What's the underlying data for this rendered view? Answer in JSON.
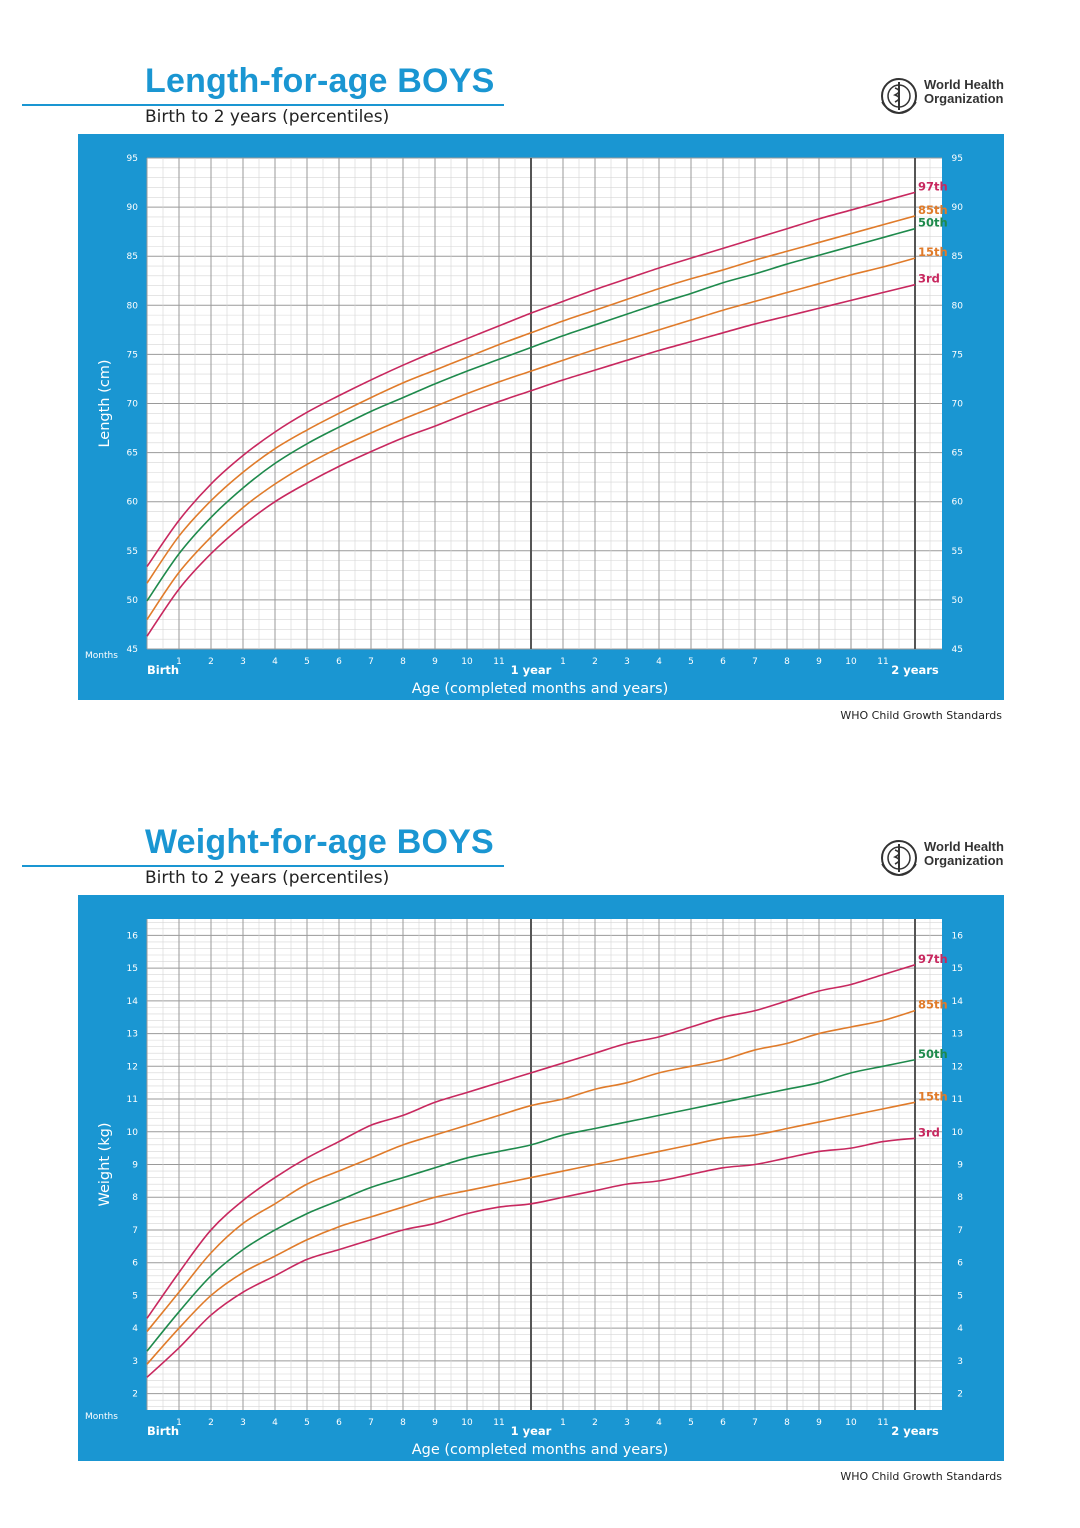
{
  "footer_text": "WHO Child Growth Standards",
  "org": {
    "line1": "World Health",
    "line2": "Organization",
    "emblem": "who-emblem-icon"
  },
  "colors": {
    "frame": "#1a96d2",
    "p97": "#c8285f",
    "p85": "#e07b2a",
    "p50": "#1e8a4c",
    "p15": "#e07b2a",
    "p3": "#c8285f"
  },
  "charts": [
    {
      "header": {
        "title": "Length-for-age BOYS",
        "subtitle": "Birth to 2 years (percentiles)"
      },
      "chart_data": {
        "type": "line",
        "title": "Length-for-age BOYS",
        "subtitle": "Birth to 2 years (percentiles)",
        "xlabel": "Age (completed months and years)",
        "ylabel": "Length (cm)",
        "x_unit_label": "Months",
        "x_range": [
          0,
          24
        ],
        "ylim": [
          45,
          95
        ],
        "y_major": 5,
        "y_minor": 1,
        "x_ticks": [
          "Birth",
          "1",
          "2",
          "3",
          "4",
          "5",
          "6",
          "7",
          "8",
          "9",
          "10",
          "11",
          "1 year",
          "1",
          "2",
          "3",
          "4",
          "5",
          "6",
          "7",
          "8",
          "9",
          "10",
          "11",
          "2 years"
        ],
        "y_ticks": [
          "45",
          "50",
          "55",
          "60",
          "65",
          "70",
          "75",
          "80",
          "85",
          "90",
          "95"
        ],
        "x": [
          0,
          1,
          2,
          3,
          4,
          5,
          6,
          7,
          8,
          9,
          10,
          11,
          12,
          13,
          14,
          15,
          16,
          17,
          18,
          19,
          20,
          21,
          22,
          23,
          24
        ],
        "series": [
          {
            "name": "97th",
            "color_key": "p97",
            "values": [
              53.4,
              58.1,
              61.8,
              64.7,
              67.1,
              69.1,
              70.8,
              72.4,
              73.9,
              75.3,
              76.6,
              77.9,
              79.2,
              80.4,
              81.6,
              82.7,
              83.8,
              84.8,
              85.8,
              86.8,
              87.8,
              88.8,
              89.7,
              90.6,
              91.5
            ]
          },
          {
            "name": "85th",
            "color_key": "p85",
            "values": [
              51.7,
              56.5,
              60.1,
              63.0,
              65.4,
              67.3,
              69.0,
              70.6,
              72.1,
              73.4,
              74.7,
              76.0,
              77.2,
              78.4,
              79.5,
              80.6,
              81.7,
              82.7,
              83.6,
              84.6,
              85.5,
              86.4,
              87.3,
              88.2,
              89.1
            ]
          },
          {
            "name": "50th",
            "color_key": "p50",
            "values": [
              49.9,
              54.7,
              58.4,
              61.4,
              63.9,
              65.9,
              67.6,
              69.2,
              70.6,
              72.0,
              73.3,
              74.5,
              75.7,
              76.9,
              78.0,
              79.1,
              80.2,
              81.2,
              82.3,
              83.2,
              84.2,
              85.1,
              86.0,
              86.9,
              87.8
            ]
          },
          {
            "name": "15th",
            "color_key": "p15",
            "values": [
              48.0,
              52.8,
              56.4,
              59.4,
              61.8,
              63.8,
              65.5,
              67.0,
              68.4,
              69.7,
              71.0,
              72.2,
              73.3,
              74.4,
              75.5,
              76.5,
              77.5,
              78.5,
              79.5,
              80.4,
              81.3,
              82.2,
              83.1,
              83.9,
              84.8
            ]
          },
          {
            "name": "3rd",
            "color_key": "p3",
            "values": [
              46.3,
              51.1,
              54.7,
              57.6,
              60.0,
              61.9,
              63.6,
              65.1,
              66.5,
              67.7,
              69.0,
              70.2,
              71.3,
              72.4,
              73.4,
              74.4,
              75.4,
              76.3,
              77.2,
              78.1,
              78.9,
              79.7,
              80.5,
              81.3,
              82.1
            ]
          }
        ]
      }
    },
    {
      "header": {
        "title": "Weight-for-age BOYS",
        "subtitle": "Birth to 2 years (percentiles)"
      },
      "chart_data": {
        "type": "line",
        "title": "Weight-for-age BOYS",
        "subtitle": "Birth to 2 years (percentiles)",
        "xlabel": "Age (completed months and years)",
        "ylabel": "Weight (kg)",
        "x_unit_label": "Months",
        "x_range": [
          0,
          24
        ],
        "ylim": [
          1.5,
          16.5
        ],
        "y_major": 1,
        "y_minor": 0.2,
        "x_ticks": [
          "Birth",
          "1",
          "2",
          "3",
          "4",
          "5",
          "6",
          "7",
          "8",
          "9",
          "10",
          "11",
          "1 year",
          "1",
          "2",
          "3",
          "4",
          "5",
          "6",
          "7",
          "8",
          "9",
          "10",
          "11",
          "2 years"
        ],
        "y_ticks": [
          "2",
          "3",
          "4",
          "5",
          "6",
          "7",
          "8",
          "9",
          "10",
          "11",
          "12",
          "13",
          "14",
          "15",
          "16"
        ],
        "x": [
          0,
          1,
          2,
          3,
          4,
          5,
          6,
          7,
          8,
          9,
          10,
          11,
          12,
          13,
          14,
          15,
          16,
          17,
          18,
          19,
          20,
          21,
          22,
          23,
          24
        ],
        "series": [
          {
            "name": "97th",
            "color_key": "p97",
            "values": [
              4.3,
              5.7,
              7.0,
              7.9,
              8.6,
              9.2,
              9.7,
              10.2,
              10.5,
              10.9,
              11.2,
              11.5,
              11.8,
              12.1,
              12.4,
              12.7,
              12.9,
              13.2,
              13.5,
              13.7,
              14.0,
              14.3,
              14.5,
              14.8,
              15.1
            ]
          },
          {
            "name": "85th",
            "color_key": "p85",
            "values": [
              3.9,
              5.1,
              6.3,
              7.2,
              7.8,
              8.4,
              8.8,
              9.2,
              9.6,
              9.9,
              10.2,
              10.5,
              10.8,
              11.0,
              11.3,
              11.5,
              11.8,
              12.0,
              12.2,
              12.5,
              12.7,
              13.0,
              13.2,
              13.4,
              13.7
            ]
          },
          {
            "name": "50th",
            "color_key": "p50",
            "values": [
              3.3,
              4.5,
              5.6,
              6.4,
              7.0,
              7.5,
              7.9,
              8.3,
              8.6,
              8.9,
              9.2,
              9.4,
              9.6,
              9.9,
              10.1,
              10.3,
              10.5,
              10.7,
              10.9,
              11.1,
              11.3,
              11.5,
              11.8,
              12.0,
              12.2
            ]
          },
          {
            "name": "15th",
            "color_key": "p15",
            "values": [
              2.9,
              4.0,
              5.0,
              5.7,
              6.2,
              6.7,
              7.1,
              7.4,
              7.7,
              8.0,
              8.2,
              8.4,
              8.6,
              8.8,
              9.0,
              9.2,
              9.4,
              9.6,
              9.8,
              9.9,
              10.1,
              10.3,
              10.5,
              10.7,
              10.9
            ]
          },
          {
            "name": "3rd",
            "color_key": "p3",
            "values": [
              2.5,
              3.4,
              4.4,
              5.1,
              5.6,
              6.1,
              6.4,
              6.7,
              7.0,
              7.2,
              7.5,
              7.7,
              7.8,
              8.0,
              8.2,
              8.4,
              8.5,
              8.7,
              8.9,
              9.0,
              9.2,
              9.4,
              9.5,
              9.7,
              9.8
            ]
          }
        ]
      }
    }
  ]
}
